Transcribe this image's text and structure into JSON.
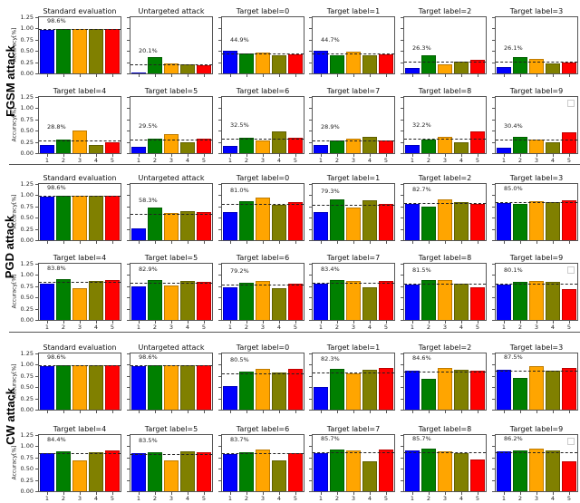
{
  "figure": {
    "ylabel": "Accuracy[%]",
    "y_ticks": [
      "0.00",
      "0.25",
      "0.50",
      "0.75",
      "1.00",
      "1.25"
    ],
    "x_ticks": [
      "1",
      "2",
      "3",
      "4",
      "5"
    ],
    "bar_colors": [
      "#0000ff",
      "#008000",
      "#ffa500",
      "#808000",
      "#ff0000"
    ]
  },
  "sections": [
    {
      "label": "FGSM attack"
    },
    {
      "label": "PGD attack"
    },
    {
      "label": "CW attack"
    }
  ],
  "chart_data": [
    {
      "type": "bar",
      "section": "FGSM attack",
      "ylabel": "Accuracy[%]",
      "ylim": [
        0,
        1.25
      ],
      "categories": [
        "1",
        "2",
        "3",
        "4",
        "5"
      ],
      "panels": [
        {
          "title": "Standard evaluation",
          "annotation": "98.6%",
          "mean": 0.986,
          "values": [
            0.97,
            0.99,
            0.99,
            0.99,
            0.99
          ]
        },
        {
          "title": "Untargeted attack",
          "annotation": "20.1%",
          "mean": 0.201,
          "values": [
            0.0,
            0.36,
            0.22,
            0.21,
            0.19
          ]
        },
        {
          "title": "Target label=0",
          "annotation": "44.9%",
          "mean": 0.449,
          "values": [
            0.5,
            0.44,
            0.47,
            0.41,
            0.42
          ]
        },
        {
          "title": "Target label=1",
          "annotation": "44.7%",
          "mean": 0.447,
          "values": [
            0.51,
            0.4,
            0.48,
            0.41,
            0.42
          ]
        },
        {
          "title": "Target label=2",
          "annotation": "26.3%",
          "mean": 0.263,
          "values": [
            0.13,
            0.41,
            0.2,
            0.27,
            0.3
          ]
        },
        {
          "title": "Target label=3",
          "annotation": "26.1%",
          "mean": 0.261,
          "values": [
            0.15,
            0.37,
            0.32,
            0.22,
            0.24
          ]
        },
        {
          "title": "Target label=4",
          "annotation": "28.8%",
          "mean": 0.288,
          "values": [
            0.19,
            0.31,
            0.5,
            0.18,
            0.24
          ]
        },
        {
          "title": "Target label=5",
          "annotation": "29.5%",
          "mean": 0.295,
          "values": [
            0.15,
            0.32,
            0.42,
            0.25,
            0.32
          ]
        },
        {
          "title": "Target label=6",
          "annotation": "32.5%",
          "mean": 0.325,
          "values": [
            0.16,
            0.34,
            0.28,
            0.49,
            0.35
          ]
        },
        {
          "title": "Target label=7",
          "annotation": "28.9%",
          "mean": 0.289,
          "values": [
            0.18,
            0.29,
            0.33,
            0.37,
            0.28
          ]
        },
        {
          "title": "Target label=8",
          "annotation": "32.2%",
          "mean": 0.322,
          "values": [
            0.19,
            0.31,
            0.36,
            0.25,
            0.48
          ]
        },
        {
          "title": "Target label=9",
          "annotation": "30.4%",
          "mean": 0.304,
          "values": [
            0.13,
            0.36,
            0.3,
            0.24,
            0.47
          ]
        }
      ]
    },
    {
      "type": "bar",
      "section": "PGD attack",
      "ylabel": "Accuracy[%]",
      "ylim": [
        0,
        1.25
      ],
      "categories": [
        "1",
        "2",
        "3",
        "4",
        "5"
      ],
      "panels": [
        {
          "title": "Standard evaluation",
          "annotation": "98.6%",
          "mean": 0.986,
          "values": [
            0.97,
            0.99,
            0.99,
            0.99,
            0.99
          ]
        },
        {
          "title": "Untargeted attack",
          "annotation": "58.3%",
          "mean": 0.583,
          "values": [
            0.27,
            0.72,
            0.61,
            0.65,
            0.63
          ]
        },
        {
          "title": "Target label=0",
          "annotation": "81.0%",
          "mean": 0.81,
          "values": [
            0.63,
            0.87,
            0.94,
            0.79,
            0.85
          ]
        },
        {
          "title": "Target label=1",
          "annotation": "79.3%",
          "mean": 0.793,
          "values": [
            0.62,
            0.91,
            0.73,
            0.88,
            0.81
          ]
        },
        {
          "title": "Target label=2",
          "annotation": "82.7%",
          "mean": 0.827,
          "values": [
            0.8,
            0.74,
            0.9,
            0.85,
            0.81
          ]
        },
        {
          "title": "Target label=3",
          "annotation": "85.0%",
          "mean": 0.85,
          "values": [
            0.82,
            0.81,
            0.86,
            0.84,
            0.89
          ]
        },
        {
          "title": "Target label=4",
          "annotation": "83.8%",
          "mean": 0.838,
          "values": [
            0.8,
            0.91,
            0.7,
            0.87,
            0.89
          ]
        },
        {
          "title": "Target label=5",
          "annotation": "82.9%",
          "mean": 0.829,
          "values": [
            0.75,
            0.89,
            0.76,
            0.87,
            0.84
          ]
        },
        {
          "title": "Target label=6",
          "annotation": "79.2%",
          "mean": 0.792,
          "values": [
            0.73,
            0.82,
            0.87,
            0.7,
            0.8
          ]
        },
        {
          "title": "Target label=7",
          "annotation": "83.4%",
          "mean": 0.834,
          "values": [
            0.8,
            0.89,
            0.87,
            0.73,
            0.86
          ]
        },
        {
          "title": "Target label=8",
          "annotation": "81.5%",
          "mean": 0.815,
          "values": [
            0.79,
            0.88,
            0.88,
            0.81,
            0.72
          ]
        },
        {
          "title": "Target label=9",
          "annotation": "80.1%",
          "mean": 0.801,
          "values": [
            0.78,
            0.84,
            0.86,
            0.85,
            0.68
          ]
        }
      ]
    },
    {
      "type": "bar",
      "section": "CW attack",
      "ylabel": "Accuracy[%]",
      "ylim": [
        0,
        1.25
      ],
      "categories": [
        "1",
        "2",
        "3",
        "4",
        "5"
      ],
      "panels": [
        {
          "title": "Standard evaluation",
          "annotation": "98.6%",
          "mean": 0.986,
          "values": [
            0.97,
            0.99,
            0.99,
            0.99,
            0.99
          ]
        },
        {
          "title": "Untargeted attack",
          "annotation": "98.6%",
          "mean": 0.986,
          "values": [
            0.97,
            0.99,
            0.99,
            0.99,
            0.99
          ]
        },
        {
          "title": "Target label=0",
          "annotation": "80.5%",
          "mean": 0.805,
          "values": [
            0.52,
            0.84,
            0.91,
            0.83,
            0.9
          ]
        },
        {
          "title": "Target label=1",
          "annotation": "82.3%",
          "mean": 0.823,
          "values": [
            0.51,
            0.91,
            0.81,
            0.89,
            0.92
          ]
        },
        {
          "title": "Target label=2",
          "annotation": "84.6%",
          "mean": 0.846,
          "values": [
            0.86,
            0.68,
            0.93,
            0.88,
            0.86
          ]
        },
        {
          "title": "Target label=3",
          "annotation": "87.5%",
          "mean": 0.875,
          "values": [
            0.89,
            0.71,
            0.96,
            0.87,
            0.92
          ]
        },
        {
          "title": "Target label=4",
          "annotation": "84.4%",
          "mean": 0.844,
          "values": [
            0.85,
            0.89,
            0.69,
            0.86,
            0.9
          ]
        },
        {
          "title": "Target label=5",
          "annotation": "83.5%",
          "mean": 0.835,
          "values": [
            0.84,
            0.87,
            0.69,
            0.88,
            0.86
          ]
        },
        {
          "title": "Target label=6",
          "annotation": "83.7%",
          "mean": 0.837,
          "values": [
            0.83,
            0.86,
            0.93,
            0.69,
            0.84
          ]
        },
        {
          "title": "Target label=7",
          "annotation": "85.7%",
          "mean": 0.857,
          "values": [
            0.85,
            0.93,
            0.9,
            0.66,
            0.93
          ]
        },
        {
          "title": "Target label=8",
          "annotation": "85.7%",
          "mean": 0.857,
          "values": [
            0.9,
            0.94,
            0.89,
            0.84,
            0.7
          ]
        },
        {
          "title": "Target label=9",
          "annotation": "86.2%",
          "mean": 0.862,
          "values": [
            0.88,
            0.9,
            0.94,
            0.9,
            0.67
          ]
        }
      ]
    }
  ]
}
